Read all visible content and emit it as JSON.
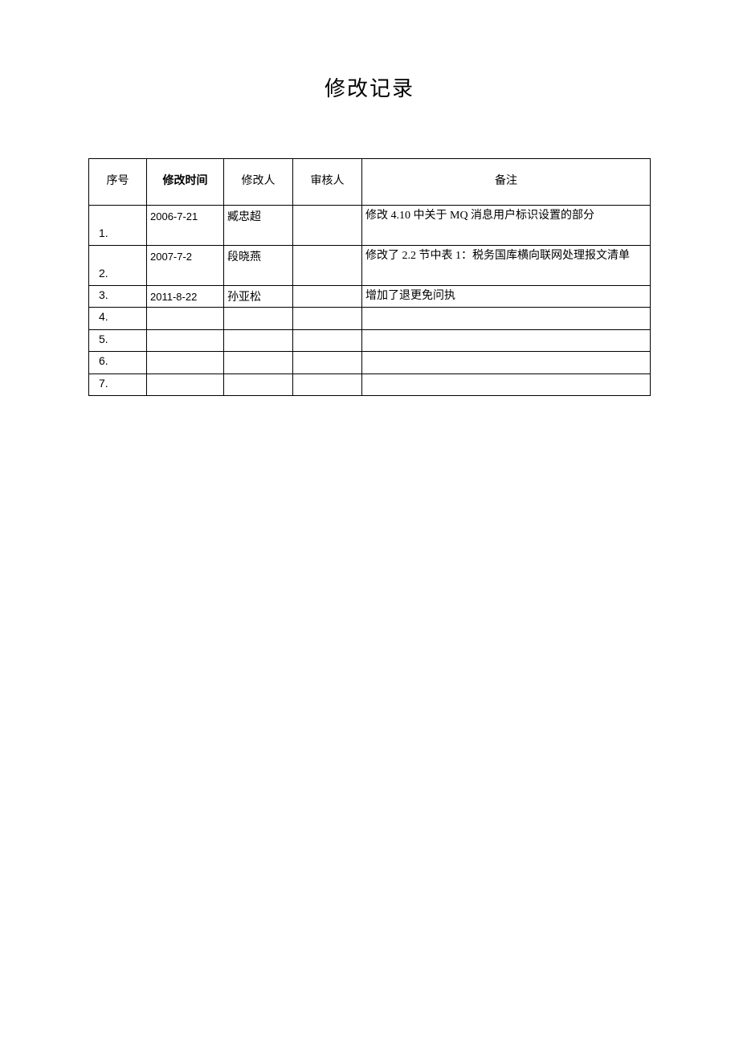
{
  "title": "修改记录",
  "table": {
    "headers": {
      "seq": "序号",
      "date": "修改时间",
      "person": "修改人",
      "reviewer": "审核人",
      "remark": "备注"
    },
    "rows": [
      {
        "seq": "1.",
        "date": "2006-7-21",
        "person": "臧忠超",
        "reviewer": "",
        "remark": "修改 4.10 中关于 MQ 消息用户标识设置的部分"
      },
      {
        "seq": "2.",
        "date": "2007-7-2",
        "person": "段晓燕",
        "reviewer": "",
        "remark": "修改了 2.2 节中表 1：税务国库横向联网处理报文清单"
      },
      {
        "seq": "3.",
        "date": "2011-8-22",
        "person": "孙亚松",
        "reviewer": "",
        "remark": "增加了退更免问执"
      },
      {
        "seq": "4.",
        "date": "",
        "person": "",
        "reviewer": "",
        "remark": ""
      },
      {
        "seq": "5.",
        "date": "",
        "person": "",
        "reviewer": "",
        "remark": ""
      },
      {
        "seq": "6.",
        "date": "",
        "person": "",
        "reviewer": "",
        "remark": ""
      },
      {
        "seq": "7.",
        "date": "",
        "person": "",
        "reviewer": "",
        "remark": ""
      }
    ]
  },
  "colors": {
    "text": "#000000",
    "background": "#ffffff",
    "border": "#000000"
  }
}
